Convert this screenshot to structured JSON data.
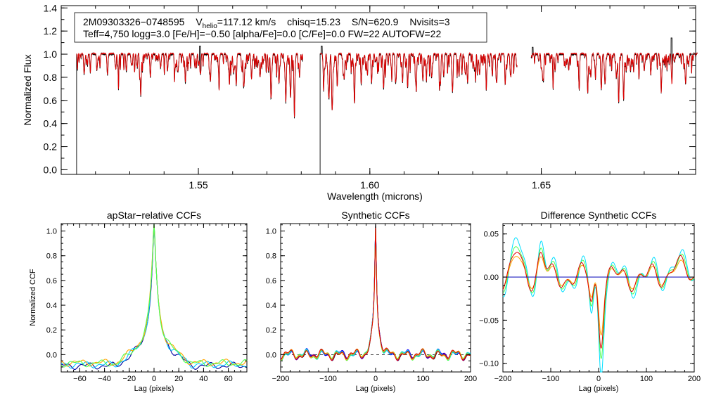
{
  "header": {
    "star_id": "2M09303326−0748595",
    "vhelio_prefix": "V",
    "vhelio_sub": "helio",
    "vhelio_value": "=117.12 km/s",
    "chisq": "chisq=15.23",
    "sn": "S/N=620.9",
    "nvisits": "Nvisits=3",
    "params": "Teff=4,750 logg=3.0 [Fe/H]=−0.50 [alpha/Fe]=0.0 [C/Fe]=0.0 FW=22 AUTOFW=22"
  },
  "colors": {
    "observed": "#000000",
    "model": "#e00000",
    "zero_line": "#2020c0"
  },
  "chart_data": [
    {
      "type": "line",
      "name": "spectrum",
      "xlabel": "Wavelength (microns)",
      "ylabel": "Normalized Flux",
      "xlim": [
        1.51,
        1.695
      ],
      "ylim": [
        -0.04,
        1.42
      ],
      "xticks": [
        1.55,
        1.6,
        1.65
      ],
      "xtick_labels": [
        "1.55",
        "1.60",
        "1.65"
      ],
      "yticks": [
        0.0,
        0.2,
        0.4,
        0.6,
        0.8,
        1.0,
        1.2,
        1.4
      ],
      "ytick_labels": [
        "0.0",
        "0.2",
        "0.4",
        "0.6",
        "0.8",
        "1.0",
        "1.2",
        "1.4"
      ],
      "detector_ranges": [
        [
          1.5145,
          1.5805
        ],
        [
          1.5855,
          1.643
        ],
        [
          1.647,
          1.6955
        ]
      ],
      "absorption_lines": [
        [
          1.5168,
          0.12
        ],
        [
          1.5185,
          0.08
        ],
        [
          1.5205,
          0.1
        ],
        [
          1.5235,
          0.18
        ],
        [
          1.5258,
          0.1
        ],
        [
          1.529,
          0.15
        ],
        [
          1.5305,
          0.1
        ],
        [
          1.5332,
          0.36
        ],
        [
          1.536,
          0.2
        ],
        [
          1.539,
          0.12
        ],
        [
          1.541,
          0.15
        ],
        [
          1.544,
          0.14
        ],
        [
          1.5462,
          0.2
        ],
        [
          1.549,
          0.12
        ],
        [
          1.5505,
          0.16
        ],
        [
          1.5535,
          0.22
        ],
        [
          1.556,
          0.15
        ],
        [
          1.559,
          0.18
        ],
        [
          1.561,
          0.15
        ],
        [
          1.5635,
          0.14
        ],
        [
          1.5655,
          0.22
        ],
        [
          1.568,
          0.2
        ],
        [
          1.5705,
          0.15
        ],
        [
          1.5712,
          0.35
        ],
        [
          1.5735,
          0.25
        ],
        [
          1.5755,
          0.42
        ],
        [
          1.5768,
          0.3
        ],
        [
          1.578,
          0.47
        ],
        [
          1.5795,
          0.2
        ],
        [
          1.5865,
          0.18
        ],
        [
          1.588,
          0.33
        ],
        [
          1.589,
          0.48
        ],
        [
          1.5905,
          0.28
        ],
        [
          1.5925,
          0.22
        ],
        [
          1.5955,
          0.4
        ],
        [
          1.5975,
          0.2
        ],
        [
          1.6005,
          0.25
        ],
        [
          1.604,
          0.3
        ],
        [
          1.6075,
          0.25
        ],
        [
          1.6095,
          0.2
        ],
        [
          1.611,
          0.27
        ],
        [
          1.6135,
          0.24
        ],
        [
          1.6155,
          0.22
        ],
        [
          1.618,
          0.2
        ],
        [
          1.6205,
          0.22
        ],
        [
          1.6215,
          0.18
        ],
        [
          1.624,
          0.2
        ],
        [
          1.626,
          0.15
        ],
        [
          1.6285,
          0.25
        ],
        [
          1.6305,
          0.12
        ],
        [
          1.632,
          0.18
        ],
        [
          1.634,
          0.22
        ],
        [
          1.637,
          0.25
        ],
        [
          1.6395,
          0.22
        ],
        [
          1.641,
          0.18
        ],
        [
          1.6505,
          0.2
        ],
        [
          1.654,
          0.15
        ],
        [
          1.658,
          0.12
        ],
        [
          1.661,
          0.25
        ],
        [
          1.6635,
          0.3
        ],
        [
          1.6645,
          0.12
        ],
        [
          1.6675,
          0.3
        ],
        [
          1.6685,
          0.2
        ],
        [
          1.6725,
          0.25
        ],
        [
          1.674,
          0.4
        ],
        [
          1.676,
          0.15
        ],
        [
          1.68,
          0.15
        ],
        [
          1.682,
          0.12
        ],
        [
          1.685,
          0.25
        ],
        [
          1.688,
          0.2
        ],
        [
          1.692,
          0.12
        ]
      ],
      "spikes": [
        [
          1.5505,
          1.07
        ],
        [
          1.5105,
          1.06
        ],
        [
          1.688,
          1.14
        ],
        [
          1.586,
          1.07
        ],
        [
          1.6475,
          1.06
        ]
      ],
      "drops_to_zero": [
        1.5142,
        1.5855
      ]
    },
    {
      "type": "line",
      "name": "apstar-ccf",
      "title": "apStar−relative CCFs",
      "xlabel": "Lag (pixels)",
      "ylabel": "Normalized CCF",
      "xlim": [
        -75,
        75
      ],
      "ylim": [
        -0.14,
        1.06
      ],
      "xticks": [
        -60,
        -40,
        -20,
        0,
        20,
        40,
        60
      ],
      "xtick_labels": [
        "−60",
        "−40",
        "−20",
        "0",
        "20",
        "40",
        "60"
      ],
      "yticks": [
        0.0,
        0.2,
        0.4,
        0.6,
        0.8,
        1.0
      ],
      "ytick_labels": [
        "0.0",
        "0.2",
        "0.4",
        "0.6",
        "0.8",
        "1.0"
      ],
      "peak": 1.0,
      "core_width": 3.2,
      "wing_amplitude": 0.26,
      "wing_width": 28,
      "baseline": -0.08,
      "series": [
        {
          "color": "#0000a0",
          "offset": -0.01
        },
        {
          "color": "#00c8ff",
          "offset": 0.0
        },
        {
          "color": "#ffa500",
          "offset": 0.015
        },
        {
          "color": "#50ff50",
          "offset": 0.01
        }
      ]
    },
    {
      "type": "line",
      "name": "synthetic-ccf",
      "title": "Synthetic CCFs",
      "xlabel": "Lag (pixels)",
      "ylabel": "",
      "xlim": [
        -200,
        200
      ],
      "ylim": [
        -0.14,
        1.06
      ],
      "xticks": [
        -200,
        -100,
        0,
        100,
        200
      ],
      "xtick_labels": [
        "−200",
        "−100",
        "0",
        "100",
        "200"
      ],
      "yticks": [
        0.0,
        0.2,
        0.4,
        0.6,
        0.8,
        1.0
      ],
      "ytick_labels": [
        "0.0",
        "0.2",
        "0.4",
        "0.6",
        "0.8",
        "1.0"
      ],
      "peak": 1.0,
      "core_width": 2.5,
      "wing_amplitude": 0.2,
      "wing_width": 14,
      "series": [
        {
          "color": "#000000"
        },
        {
          "color": "#7800a0"
        },
        {
          "color": "#0000ff"
        },
        {
          "color": "#00d0ff"
        },
        {
          "color": "#50ff50"
        },
        {
          "color": "#ffa500"
        },
        {
          "color": "#e00000"
        }
      ]
    },
    {
      "type": "line",
      "name": "difference-ccf",
      "title": "Difference Synthetic CCFs",
      "xlabel": "Lag (pixels)",
      "ylabel": "",
      "xlim": [
        -200,
        200
      ],
      "ylim": [
        -0.11,
        0.062
      ],
      "xticks": [
        -200,
        -100,
        0,
        100,
        200
      ],
      "xtick_labels": [
        "−200",
        "−100",
        "0",
        "100",
        "200"
      ],
      "yticks": [
        -0.1,
        -0.05,
        0.0,
        0.05
      ],
      "ytick_labels": [
        "−0.10",
        "−0.05",
        "0.00",
        "0.05"
      ],
      "series": [
        {
          "color": "#00e0ff",
          "scale": 1.25
        },
        {
          "color": "#50ff50",
          "scale": 1.0
        },
        {
          "color": "#ffa500",
          "scale": 0.7
        },
        {
          "color": "#e00000",
          "scale": 0.85
        }
      ]
    }
  ]
}
